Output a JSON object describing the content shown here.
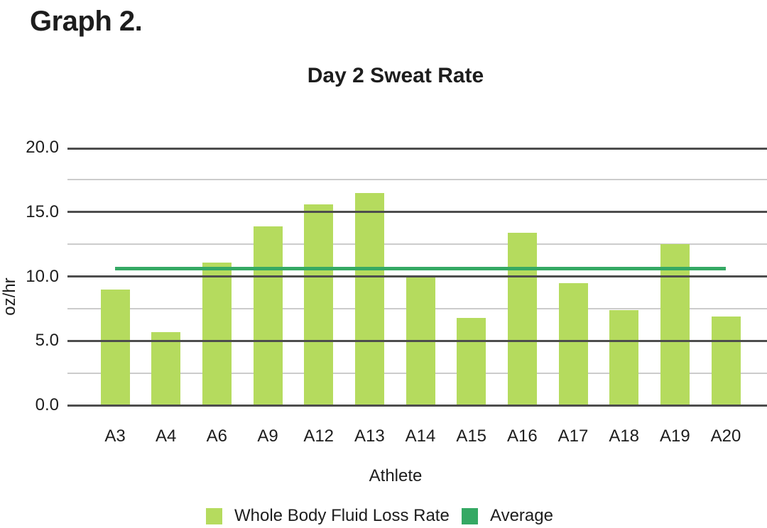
{
  "heading": "Graph 2.",
  "chart_data": {
    "type": "bar",
    "title": "Day 2 Sweat Rate",
    "xlabel": "Athlete",
    "ylabel": "oz/hr",
    "categories": [
      "A3",
      "A4",
      "A6",
      "A9",
      "A12",
      "A13",
      "A14",
      "A15",
      "A16",
      "A17",
      "A18",
      "A19",
      "A20"
    ],
    "series": [
      {
        "name": "Whole Body Fluid Loss Rate",
        "kind": "bar",
        "color": "#b5db5e",
        "values": [
          9.0,
          5.7,
          11.1,
          13.9,
          15.6,
          16.5,
          9.9,
          6.8,
          13.4,
          9.5,
          7.4,
          12.5,
          6.9
        ]
      },
      {
        "name": "Average",
        "kind": "line",
        "color": "#35a964",
        "value": 10.6
      }
    ],
    "ylim": [
      0,
      20
    ],
    "ytick_values": [
      0,
      5,
      10,
      15,
      20
    ],
    "ytick_labels": [
      "0.0",
      "5.0",
      "10.0",
      "15.0",
      "20.0"
    ],
    "minor_ytick_values": [
      2.5,
      7.5,
      12.5,
      17.5
    ],
    "grid": "horizontal",
    "legend_position": "bottom",
    "colors": {
      "major_gridline": "#4d4d4d",
      "minor_gridline": "#cccccc",
      "text": "#1d1d1d",
      "background": "#ffffff"
    }
  }
}
